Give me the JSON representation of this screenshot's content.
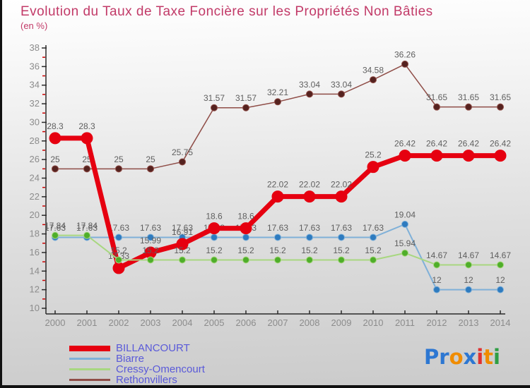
{
  "header": {
    "title": "Evolution du Taux de Taxe Foncière sur les Propriétés Non Bâties",
    "subtitle": "(en %)"
  },
  "chart_data": {
    "type": "line",
    "categories": [
      2000,
      2001,
      2002,
      2003,
      2004,
      2005,
      2006,
      2007,
      2008,
      2009,
      2010,
      2011,
      2012,
      2013,
      2014
    ],
    "series": [
      {
        "name": "Biarre",
        "line_color": "#7fb0d8",
        "marker_color": "#2e7bbf",
        "line_width": 2,
        "marker_radius": 4.5,
        "values": [
          17.63,
          17.63,
          17.63,
          17.63,
          17.63,
          17.63,
          17.63,
          17.63,
          17.63,
          17.63,
          17.63,
          19.04,
          12,
          12,
          12
        ]
      },
      {
        "name": "Rethonvillers",
        "line_color": "#8f4d47",
        "marker_color": "#55221f",
        "line_width": 1.5,
        "marker_radius": 4.5,
        "values": [
          25,
          25,
          25,
          25,
          25.75,
          31.57,
          31.57,
          32.21,
          33.04,
          33.04,
          34.58,
          36.26,
          31.65,
          31.65,
          31.65
        ]
      },
      {
        "name": "BILLANCOURT",
        "line_color": "#e60010",
        "marker_color": "#e60010",
        "line_width": 7,
        "marker_radius": 8,
        "values": [
          28.3,
          28.3,
          14.33,
          15.99,
          16.91,
          18.6,
          18.6,
          22.02,
          22.02,
          22.02,
          25.2,
          26.42,
          26.42,
          26.42,
          26.42
        ]
      },
      {
        "name": "Cressy-Omencourt",
        "line_color": "#a8d780",
        "marker_color": "#4fae2a",
        "line_width": 2,
        "marker_radius": 4.5,
        "values": [
          17.84,
          17.84,
          15.2,
          15.2,
          15.2,
          15.2,
          15.2,
          15.2,
          15.2,
          15.2,
          15.2,
          15.94,
          14.67,
          14.67,
          14.67
        ]
      }
    ],
    "legend_order": [
      "BILLANCOURT",
      "Biarre",
      "Cressy-Omencourt",
      "Rethonvillers"
    ],
    "title": "Evolution du Taux de Taxe Foncière sur les Propriétés Non Bâties",
    "ylabel": "",
    "xlabel": "",
    "ylim": [
      10,
      38
    ],
    "ytick_step": 2,
    "yticks": [
      10,
      12,
      14,
      16,
      18,
      20,
      22,
      24,
      26,
      28,
      30,
      32,
      34,
      36,
      38
    ],
    "minor_yticks": [
      11,
      13,
      15,
      17,
      19,
      21,
      23,
      25,
      27,
      29,
      31,
      33,
      35,
      37
    ],
    "grid": false,
    "legend_position": "bottom-left",
    "colors": {
      "axis_line": "#2a2a2a",
      "axis_tick_label": "#8c8c8c",
      "minor_tick": "#cc0000",
      "data_label": "#5f5f5f",
      "title": "#c23a68",
      "legend_text": "#5a5ad9"
    }
  },
  "legend": {
    "items": [
      {
        "label": "BILLANCOURT"
      },
      {
        "label": "Biarre"
      },
      {
        "label": "Cressy-Omencourt"
      },
      {
        "label": "Rethonvillers"
      }
    ]
  },
  "logo": {
    "text": "Proxiti",
    "letters": [
      {
        "ch": "P",
        "color": "#2d77d2"
      },
      {
        "ch": "r",
        "color": "#2d77d2"
      },
      {
        "ch": "o",
        "color": "#f08c00"
      },
      {
        "ch": "x",
        "color": "#2d77d2"
      },
      {
        "ch": "i",
        "color": "#e03131"
      },
      {
        "ch": "t",
        "color": "#f08c00"
      },
      {
        "ch": "i",
        "color": "#2f9e44"
      }
    ]
  }
}
